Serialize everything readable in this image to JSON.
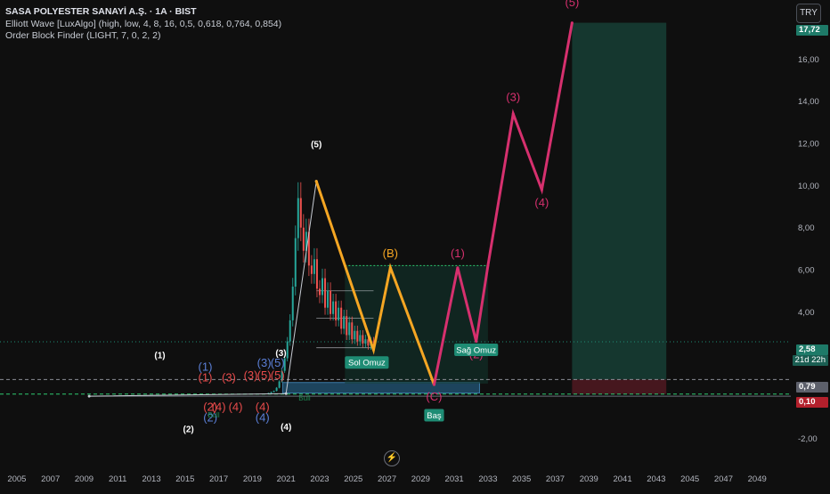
{
  "header": {
    "title": "SASA POLYESTER SANAYİ A.Ş. · 1A · BIST",
    "indicator_1": "Elliott Wave [LuxAlgo] (high, low, 4, 8, 16, 0,5, 0,618, 0,764, 0,854)",
    "indicator_2": "Order Block Finder (LIGHT, 7, 0, 2, 2)"
  },
  "currency_button": "TRY",
  "price_tags": {
    "top": "17,72",
    "current": "2,58",
    "countdown": "21d 22h",
    "mid": "0,79",
    "low": "0,10"
  },
  "colors": {
    "background": "#0f0f0f",
    "magenta": "#d6306e",
    "orange": "#f5a623",
    "green_zone": "#1b4a3f",
    "red_zone": "#5a1a22",
    "blue_block": "#1f4a66",
    "label_green": "#1e8c74"
  },
  "chart_data": {
    "type": "line",
    "x_axis": {
      "ticks": [
        "2005",
        "2007",
        "2009",
        "2011",
        "2013",
        "2015",
        "2017",
        "2019",
        "2021",
        "2023",
        "2025",
        "2027",
        "2029",
        "2031",
        "2033",
        "2035",
        "2037",
        "2039",
        "2041",
        "2043",
        "2045",
        "2047",
        "2049"
      ],
      "range": [
        2004,
        2051
      ]
    },
    "y_axis": {
      "ticks": [
        "16,00",
        "14,00",
        "12,00",
        "10,00",
        "8,00",
        "6,00",
        "4,00",
        "2,00",
        "-2,00"
      ],
      "tick_values": [
        16,
        14,
        12,
        10,
        8,
        6,
        4,
        2,
        -2
      ],
      "range": [
        -3.5,
        18.8
      ]
    },
    "series": [
      {
        "style": "thin-white",
        "points": [
          [
            2009.3,
            0
          ],
          [
            2021.0,
            0.12
          ],
          [
            2022.8,
            10.2
          ]
        ]
      },
      {
        "style": "orange",
        "points": [
          [
            2022.8,
            10.2
          ],
          [
            2026.2,
            2.2
          ],
          [
            2027.2,
            6.1
          ],
          [
            2029.8,
            0.55
          ]
        ]
      },
      {
        "style": "magenta-projection",
        "points": [
          [
            2029.8,
            0.55
          ],
          [
            2031.2,
            6.1
          ],
          [
            2032.3,
            2.6
          ],
          [
            2033.0,
            6.2
          ],
          [
            2034.5,
            13.4
          ],
          [
            2036.2,
            9.8
          ],
          [
            2038.0,
            17.72
          ]
        ]
      }
    ],
    "wave_labels": [
      {
        "text": "(5)",
        "x": 2022.8,
        "y": 11.8,
        "color": "#ffffff"
      },
      {
        "text": "(B)",
        "x": 2027.2,
        "y": 6.6,
        "color": "#f5a623"
      },
      {
        "text": "(C)",
        "x": 2029.8,
        "y": -0.2,
        "color": "#d6306e"
      },
      {
        "text": "(1)",
        "x": 2031.2,
        "y": 6.6,
        "color": "#d6306e"
      },
      {
        "text": "(2)",
        "x": 2032.3,
        "y": 1.8,
        "color": "#d6306e"
      },
      {
        "text": "(3)",
        "x": 2034.5,
        "y": 14.0,
        "color": "#d6306e"
      },
      {
        "text": "(4)",
        "x": 2036.2,
        "y": 9.0,
        "color": "#d6306e"
      },
      {
        "text": "(5)",
        "x": 2038.0,
        "y": 18.5,
        "color": "#d6306e"
      },
      {
        "text": "(1)",
        "x": 2013.5,
        "y": 1.8,
        "color": "#ffffff"
      },
      {
        "text": "(2)",
        "x": 2015.2,
        "y": -1.7,
        "color": "#ffffff"
      },
      {
        "text": "(4)",
        "x": 2021.0,
        "y": -1.6,
        "color": "#ffffff"
      },
      {
        "text": "(3)",
        "x": 2020.7,
        "y": 1.9,
        "color": "#ffffff"
      },
      {
        "text": "(1)",
        "x": 2016.2,
        "y": 1.2,
        "color": "#5b7fd6"
      },
      {
        "text": "(1)",
        "x": 2016.2,
        "y": 0.7,
        "color": "#e84b4b"
      },
      {
        "text": "(3)",
        "x": 2017.6,
        "y": 0.7,
        "color": "#e84b4b"
      },
      {
        "text": "(3)",
        "x": 2018.9,
        "y": 0.8,
        "color": "#e84b4b"
      },
      {
        "text": "(5)",
        "x": 2019.7,
        "y": 0.8,
        "color": "#e84b4b"
      },
      {
        "text": "(3)",
        "x": 2019.7,
        "y": 1.4,
        "color": "#5b7fd6"
      },
      {
        "text": "(5)",
        "x": 2020.5,
        "y": 1.4,
        "color": "#5b7fd6"
      },
      {
        "text": "(2)",
        "x": 2016.5,
        "y": -0.7,
        "color": "#e84b4b"
      },
      {
        "text": "(2)",
        "x": 2016.5,
        "y": -1.2,
        "color": "#5b7fd6"
      },
      {
        "text": "(4)",
        "x": 2017.0,
        "y": -0.7,
        "color": "#e84b4b"
      },
      {
        "text": "(4)",
        "x": 2018.0,
        "y": -0.7,
        "color": "#e84b4b"
      },
      {
        "text": "(4)",
        "x": 2019.6,
        "y": -0.7,
        "color": "#e84b4b"
      },
      {
        "text": "(4)",
        "x": 2019.6,
        "y": -1.2,
        "color": "#5b7fd6"
      },
      {
        "text": "(5)",
        "x": 2020.5,
        "y": 0.8,
        "color": "#e84b4b"
      }
    ],
    "pattern_labels": [
      {
        "text": "Sol Omuz",
        "x": 2025.8,
        "y": 1.6
      },
      {
        "text": "Baş",
        "x": 2029.8,
        "y": -0.9
      },
      {
        "text": "Sağ Omuz",
        "x": 2032.3,
        "y": 2.2
      }
    ],
    "small_labels": [
      {
        "text": "Bull",
        "x": 2022.1,
        "y": -0.2,
        "color": "#1f8c55"
      },
      {
        "text": "Bull",
        "x": 2016.7,
        "y": -1.0,
        "color": "#1f8c55"
      }
    ],
    "levels": [
      {
        "value": 2.58,
        "color": "#1e8c74",
        "style": "dotted"
      },
      {
        "value": 0.79,
        "color": "#8a8d94",
        "style": "dashed"
      },
      {
        "value": 0.1,
        "color": "#2ecc71",
        "style": "dashed"
      },
      {
        "value": 0.0,
        "color": "#6b6f79",
        "style": "solid"
      }
    ],
    "zones": [
      {
        "kind": "projection-profit",
        "x": [
          2038.0,
          2043.6
        ],
        "y": [
          0.79,
          17.72
        ],
        "color": "#163c33"
      },
      {
        "kind": "projection-loss",
        "x": [
          2038.0,
          2043.6
        ],
        "y": [
          0.1,
          0.79
        ],
        "color": "#4d1820"
      },
      {
        "kind": "order-block",
        "x": [
          2020.8,
          2032.5
        ],
        "y": [
          0.15,
          0.65
        ],
        "color": "#1f4a66"
      },
      {
        "kind": "neckline-zone",
        "x": [
          2024.5,
          2033.0
        ],
        "y": [
          0.6,
          6.2
        ],
        "color": "#123830"
      }
    ],
    "candles": {
      "x_start": 2019.8,
      "x_end": 2026.2,
      "values": [
        0.12,
        0.15,
        0.2,
        0.25,
        0.4,
        0.7,
        1.2,
        1.8,
        2.6,
        3.6,
        5.2,
        7.5,
        9.4,
        8.0,
        6.9,
        7.8,
        6.2,
        5.8,
        6.5,
        5.1,
        4.8,
        5.6,
        4.2,
        5.0,
        3.9,
        4.5,
        3.6,
        4.2,
        3.2,
        3.8,
        2.9,
        3.5,
        2.7,
        3.1,
        2.6,
        2.9,
        2.5,
        2.7,
        2.4,
        2.6,
        2.58
      ]
    }
  }
}
